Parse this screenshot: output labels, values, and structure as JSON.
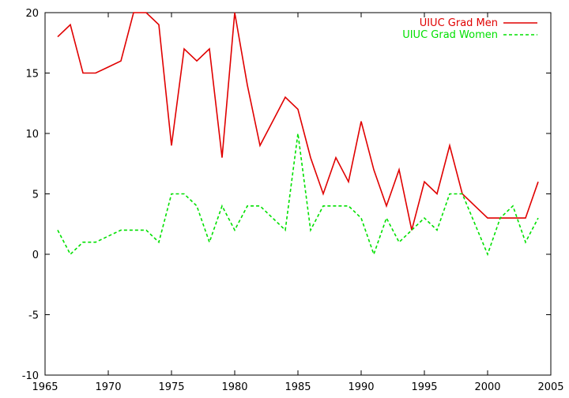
{
  "chart_data": {
    "type": "line",
    "title": "",
    "xlabel": "",
    "ylabel": "",
    "xlim": [
      1965,
      2005
    ],
    "ylim": [
      -10,
      20
    ],
    "xticks": [
      1965,
      1970,
      1975,
      1980,
      1985,
      1990,
      1995,
      2000,
      2005
    ],
    "yticks": [
      -10,
      -5,
      0,
      5,
      10,
      15,
      20
    ],
    "grid": false,
    "legend_position": "top-right",
    "series": [
      {
        "name": "UIUC Grad Men",
        "color": "#e00000",
        "style": "solid",
        "x": [
          1966,
          1967,
          1968,
          1969,
          1970,
          1971,
          1972,
          1973,
          1974,
          1975,
          1976,
          1977,
          1978,
          1979,
          1980,
          1981,
          1982,
          1983,
          1984,
          1985,
          1986,
          1987,
          1988,
          1989,
          1990,
          1991,
          1992,
          1993,
          1994,
          1995,
          1996,
          1997,
          1998,
          1999,
          2000,
          2001,
          2002,
          2003,
          2004
        ],
        "values": [
          18,
          19,
          15,
          15,
          15.5,
          16,
          20,
          20,
          19,
          9,
          17,
          16,
          17,
          8,
          20,
          14,
          9,
          11,
          13,
          12,
          8,
          5,
          8,
          6,
          11,
          7,
          4,
          7,
          2,
          6,
          5,
          9,
          5,
          4,
          3,
          3,
          3,
          3,
          6
        ]
      },
      {
        "name": "UIUC Grad Women",
        "color": "#00e000",
        "style": "dashed",
        "x": [
          1966,
          1967,
          1968,
          1969,
          1970,
          1971,
          1972,
          1973,
          1974,
          1975,
          1976,
          1977,
          1978,
          1979,
          1980,
          1981,
          1982,
          1983,
          1984,
          1985,
          1986,
          1987,
          1988,
          1989,
          1990,
          1991,
          1992,
          1993,
          1994,
          1995,
          1996,
          1997,
          1998,
          1999,
          2000,
          2001,
          2002,
          2003,
          2004
        ],
        "values": [
          2,
          0,
          1,
          1,
          1.5,
          2,
          2,
          2,
          1,
          5,
          5,
          4,
          1,
          4,
          2,
          4,
          4,
          3,
          2,
          10,
          2,
          4,
          4,
          4,
          3,
          0,
          3,
          1,
          2,
          3,
          2,
          5,
          5,
          2.5,
          0,
          3,
          4,
          1,
          3
        ]
      }
    ]
  }
}
